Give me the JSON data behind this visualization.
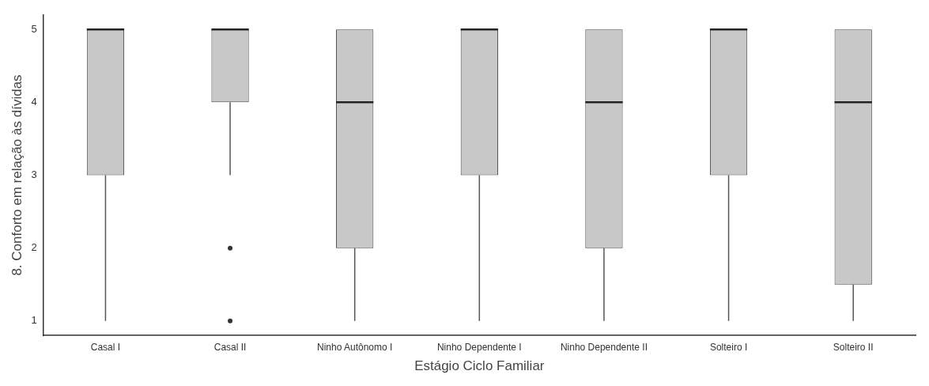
{
  "chart_data": {
    "type": "box",
    "xlabel": "Estágio Ciclo Familiar",
    "ylabel": "8. Conforto em relação às dívidas",
    "categories": [
      "Casal I",
      "Casal II",
      "Ninho Autônomo I",
      "Ninho Dependente I",
      "Ninho Dependente II",
      "Solteiro I",
      "Solteiro II"
    ],
    "ylim": [
      0.8,
      5.2
    ],
    "yticks": [
      1,
      2,
      3,
      4,
      5
    ],
    "grid": false,
    "legend": false,
    "series": [
      {
        "color": "#c8c8c8",
        "boxes": [
          {
            "low": 1,
            "q1": 3,
            "median": 5,
            "q3": 5,
            "high": 5
          },
          {
            "low": 3,
            "q1": 4,
            "median": 5,
            "q3": 5,
            "high": 5,
            "outliers": [
              2,
              1
            ]
          },
          {
            "low": 1,
            "q1": 2,
            "median": 4,
            "q3": 5,
            "high": 5
          },
          {
            "low": 1,
            "q1": 3,
            "median": 5,
            "q3": 5,
            "high": 5
          },
          {
            "low": 1,
            "q1": 2,
            "median": 4,
            "q3": 5,
            "high": 5
          },
          {
            "low": 1,
            "q1": 3,
            "median": 5,
            "q3": 5,
            "high": 5
          },
          {
            "low": 1,
            "q1": 1.5,
            "median": 4,
            "q3": 5,
            "high": 5
          }
        ]
      }
    ]
  }
}
